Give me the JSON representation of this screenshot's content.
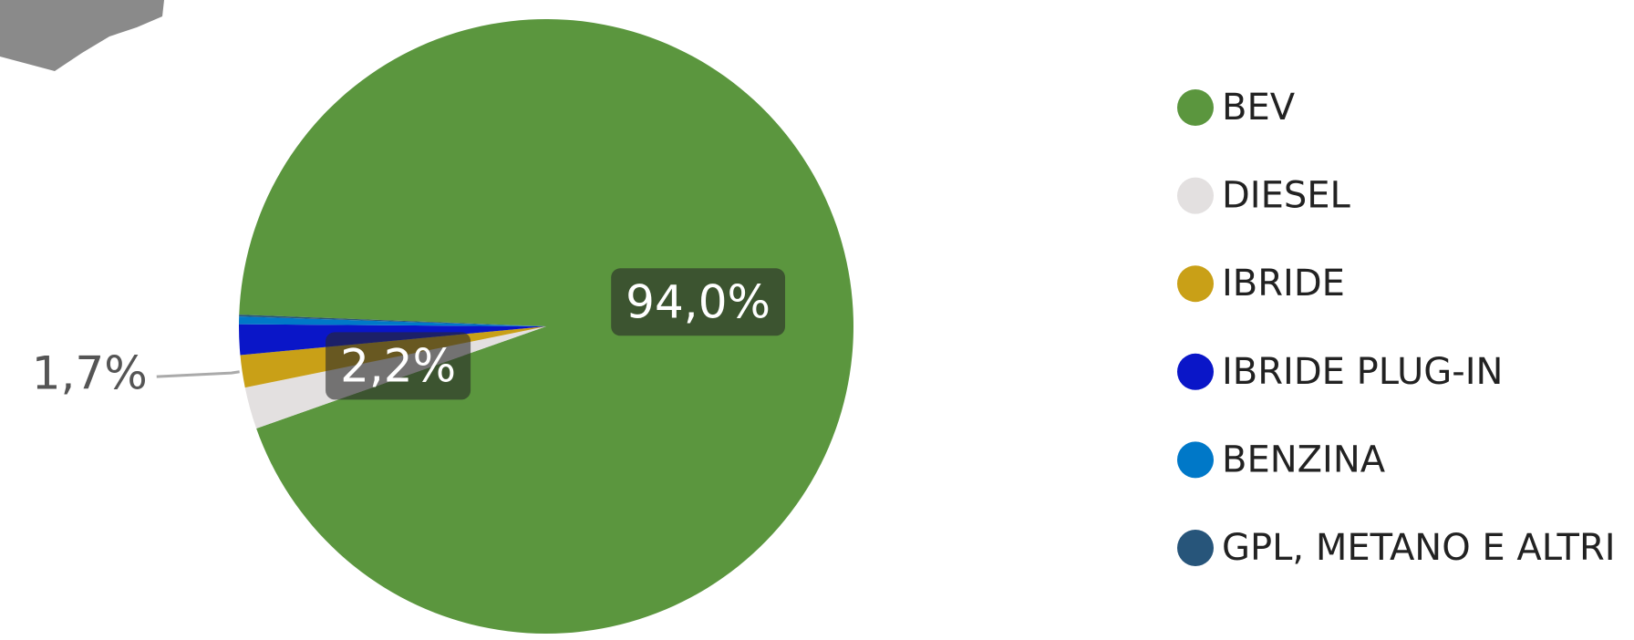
{
  "chart_data": {
    "type": "pie",
    "categories": [
      "BEV",
      "DIESEL",
      "IBRIDE",
      "IBRIDE PLUG-IN",
      "BENZINA",
      "GPL, METANO E ALTRI"
    ],
    "values": [
      94.0,
      2.2,
      1.7,
      1.6,
      0.4,
      0.1
    ],
    "value_labels": [
      "94,0%",
      "2,2%",
      "1,7%",
      null,
      null,
      null
    ],
    "colors": [
      "#5b963e",
      "#e3e0e0",
      "#c9a017",
      "#0a16c8",
      "#0078c8",
      "#27557a"
    ],
    "legend": "right"
  }
}
